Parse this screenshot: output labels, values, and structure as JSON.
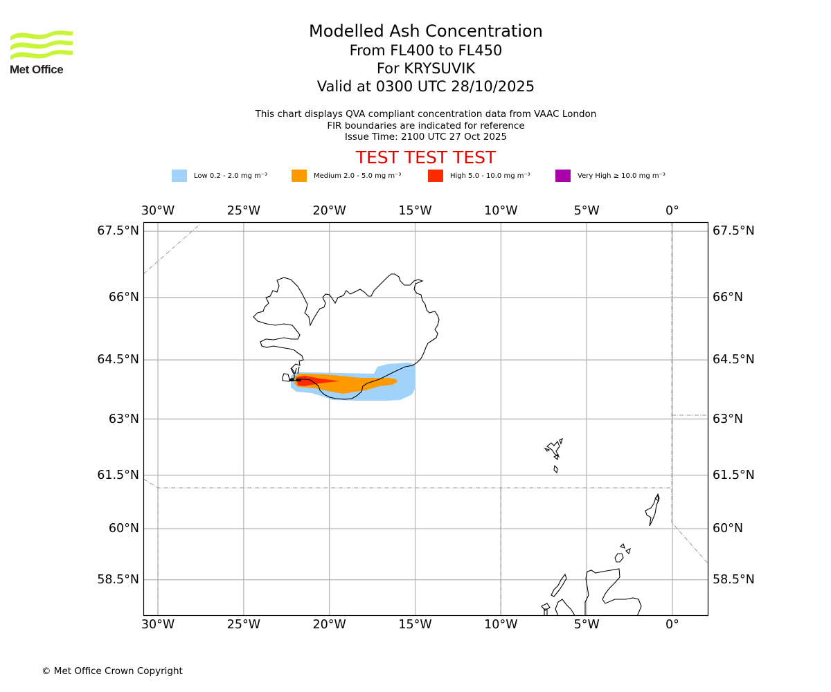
{
  "logo": {
    "name": "Met Office",
    "text": "Met Office",
    "color": "#c8f53a"
  },
  "title": {
    "line1": "Modelled Ash Concentration",
    "line2": "From FL400 to FL450",
    "line3": "For KRYSUVIK",
    "line4": "Valid at 0300 UTC 28/10/2025"
  },
  "info": {
    "line1": "This chart displays QVA compliant concentration data from VAAC London",
    "line2": "FIR boundaries are indicated for reference",
    "line3": "Issue Time: 2100 UTC 27 Oct 2025"
  },
  "banner": {
    "text": "TEST TEST TEST",
    "color": "#e00000"
  },
  "legend": [
    {
      "label": "Low 0.2 - 2.0 mg m⁻³",
      "color": "#a0d2fa"
    },
    {
      "label": "Medium 2.0 - 5.0 mg m⁻³",
      "color": "#ff9900"
    },
    {
      "label": "High 5.0 - 10.0 mg m⁻³",
      "color": "#ff2a00"
    },
    {
      "label": "Very High  ≥  10.0 mg m⁻³",
      "color": "#aa00aa"
    }
  ],
  "map": {
    "lon_ticks": [
      "30°W",
      "25°W",
      "20°W",
      "15°W",
      "10°W",
      "5°W",
      "0°"
    ],
    "lon_values": [
      -30,
      -25,
      -20,
      -15,
      -10,
      -5,
      0
    ],
    "lat_ticks": [
      "67.5°N",
      "66°N",
      "64.5°N",
      "63°N",
      "61.5°N",
      "60°N",
      "58.5°N"
    ],
    "lat_values": [
      67.5,
      66,
      64.5,
      63,
      61.5,
      60,
      58.5
    ],
    "extent": {
      "lon_min": -30.85,
      "lon_max": 2.1,
      "lat_min": 57.4,
      "lat_max": 67.7
    },
    "grid": true,
    "ash_levels_present": [
      "Low",
      "Medium",
      "High"
    ],
    "source_volcano": "KRYSUVIK"
  },
  "footer": {
    "copyright": "© Met Office Crown Copyright"
  }
}
